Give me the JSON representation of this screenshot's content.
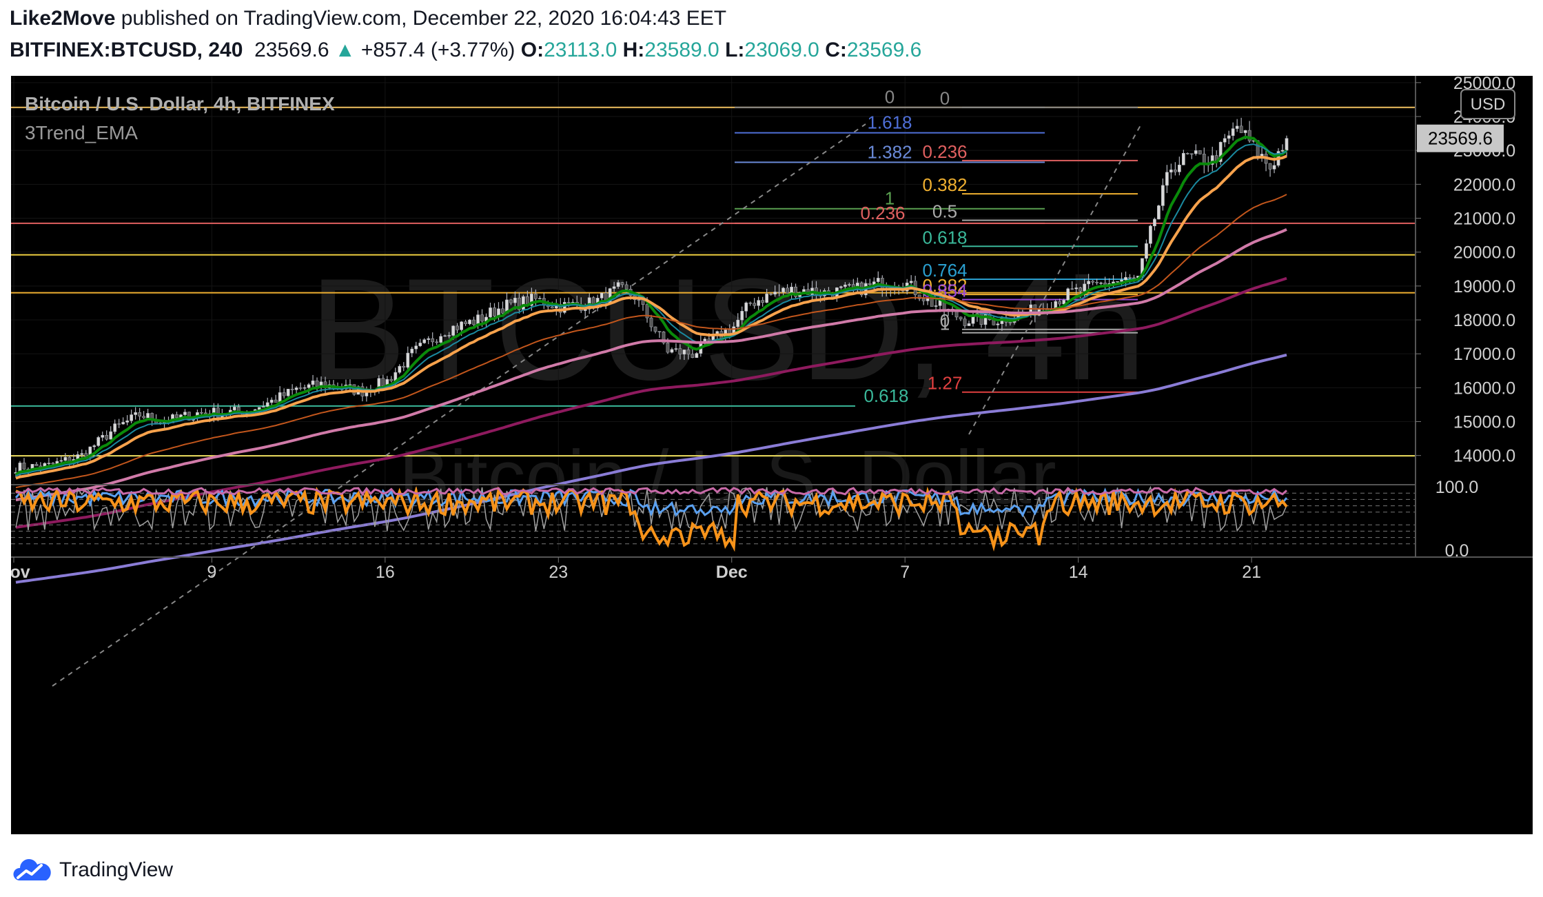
{
  "header": {
    "author": "Like2Move",
    "published_text": " published on TradingView.com, December 22, 2020 16:04:43 EET",
    "symbol": "BITFINEX:BTCUSD, 240",
    "price": "23569.6",
    "up_arrow": "▲",
    "change": "+857.4 (+3.77%)",
    "o_label": "O:",
    "o_value": "23113.0",
    "h_label": "H:",
    "h_value": "23589.0",
    "l_label": "L:",
    "l_value": "23069.0",
    "c_label": "C:",
    "c_value": "23569.6"
  },
  "pane": {
    "title": "Bitcoin / U.S. Dollar, 4h, BITFINEX",
    "indicator": "3Trend_EMA",
    "watermark_symbol": "BTCUSD, 4h",
    "watermark_name": "Bitcoin / U.S. Dollar",
    "currency": "USD",
    "last_price": "23569.6"
  },
  "colors": {
    "background": "#000000",
    "candle": "#b2b5be",
    "ema_fast": "#0a8a0a",
    "ema_mid": "#1a8aa0",
    "ema_slow": "#f7a24c",
    "ema_4": "#c2561c",
    "ema_5": "#d07aa8",
    "ema_6": "#8e1a5e",
    "ema_7": "#8a7cd6"
  },
  "footer": {
    "brand": "TradingView",
    "logo_icon": "tradingview-cloud-icon"
  },
  "chart_data": {
    "type": "candlestick",
    "ylim": [
      13200,
      25200
    ],
    "y_ticks": [
      "25000.0",
      "24000.0",
      "23000.0",
      "22000.0",
      "21000.0",
      "20000.0",
      "19000.0",
      "18000.0",
      "17000.0",
      "16000.0",
      "15000.0",
      "14000.0"
    ],
    "y_tick_values": [
      25000,
      24000,
      23000,
      22000,
      21000,
      20000,
      19000,
      18000,
      17000,
      16000,
      15000,
      14000
    ],
    "x_ticks": [
      "Nov",
      "9",
      "16",
      "23",
      "Dec",
      "7",
      "14",
      "21"
    ],
    "x_tick_bars": [
      0,
      48,
      90,
      132,
      174,
      216,
      258,
      300
    ],
    "total_bars": 309,
    "close_anchors": [
      [
        0,
        13650
      ],
      [
        8,
        13700
      ],
      [
        16,
        14000
      ],
      [
        24,
        14800
      ],
      [
        30,
        15200
      ],
      [
        36,
        15000
      ],
      [
        44,
        15250
      ],
      [
        56,
        15300
      ],
      [
        62,
        15600
      ],
      [
        68,
        15950
      ],
      [
        74,
        16100
      ],
      [
        84,
        15900
      ],
      [
        90,
        16200
      ],
      [
        96,
        17000
      ],
      [
        104,
        17700
      ],
      [
        112,
        18000
      ],
      [
        118,
        18400
      ],
      [
        126,
        18600
      ],
      [
        132,
        18400
      ],
      [
        140,
        18500
      ],
      [
        146,
        18900
      ],
      [
        150,
        18700
      ],
      [
        158,
        17100
      ],
      [
        164,
        17000
      ],
      [
        170,
        17500
      ],
      [
        174,
        17800
      ],
      [
        178,
        18500
      ],
      [
        184,
        18800
      ],
      [
        190,
        18900
      ],
      [
        196,
        18800
      ],
      [
        204,
        18900
      ],
      [
        210,
        19100
      ],
      [
        216,
        19050
      ],
      [
        222,
        18500
      ],
      [
        230,
        18000
      ],
      [
        238,
        18000
      ],
      [
        246,
        18250
      ],
      [
        256,
        18800
      ],
      [
        264,
        19100
      ],
      [
        272,
        19200
      ],
      [
        276,
        21000
      ],
      [
        280,
        22500
      ],
      [
        284,
        22800
      ],
      [
        290,
        22700
      ],
      [
        296,
        23700
      ],
      [
        300,
        23100
      ],
      [
        304,
        22500
      ],
      [
        309,
        23569.6
      ]
    ],
    "ema_lengths": [
      8,
      13,
      21,
      55,
      100,
      200,
      400
    ],
    "horizontal_levels": [
      {
        "value": 24270,
        "color": "#f0c060",
        "label": ""
      },
      {
        "value": 20850,
        "color": "#e06060",
        "label": ""
      },
      {
        "value": 19920,
        "color": "#f0d040",
        "label": ""
      },
      {
        "value": 18800,
        "color": "#f0b030",
        "label": ""
      },
      {
        "value": 13990,
        "color": "#f0e060",
        "label": ""
      }
    ],
    "fib_extension_1": [
      {
        "label": "0",
        "value": 24270,
        "color": "#888888"
      },
      {
        "label": "1.618",
        "value": 23520,
        "color": "#4f6fd8"
      },
      {
        "label": "1.382",
        "value": 22650,
        "color": "#6a8ad8"
      },
      {
        "label": "1",
        "value": 21280,
        "color": "#5aa050"
      },
      {
        "label": "0.236",
        "value": 20850,
        "color": "#e06060"
      },
      {
        "label": "0.618",
        "value": 15460,
        "color": "#3ab89a"
      }
    ],
    "fib_retracement_2": [
      {
        "label": "0",
        "value": 24270,
        "color": "#888888"
      },
      {
        "label": "0.236",
        "value": 22700,
        "color": "#e06060"
      },
      {
        "label": "0.382",
        "value": 21720,
        "color": "#f0b030"
      },
      {
        "label": "0.5",
        "value": 20940,
        "color": "#aaaaaa"
      },
      {
        "label": "0.618",
        "value": 20170,
        "color": "#3ab89a"
      },
      {
        "label": "0.764",
        "value": 19200,
        "color": "#2aa0d0"
      },
      {
        "label": "0.382",
        "value": 18750,
        "color": "#f0b030"
      },
      {
        "label": "0.854",
        "value": 18600,
        "color": "#9a4ad8"
      },
      {
        "label": "0",
        "value": 17720,
        "color": "#aaaaaa"
      },
      {
        "label": "1",
        "value": 17620,
        "color": "#aaaaaa"
      },
      {
        "label": "1.27",
        "value": 15870,
        "color": "#e04040"
      }
    ],
    "oscillator": {
      "ylim": [
        0,
        100
      ],
      "y_ticks": [
        "100.0",
        "0.0"
      ],
      "y_tick_values": [
        100,
        0
      ],
      "dashed_levels": [
        90,
        80,
        70,
        60,
        40,
        30,
        20,
        10
      ]
    }
  }
}
